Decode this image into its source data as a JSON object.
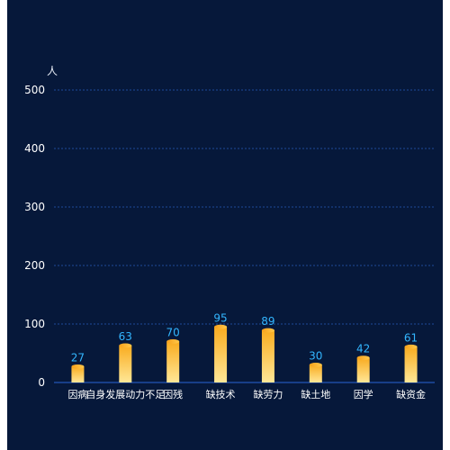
{
  "chart_data": {
    "type": "bar",
    "unit": "人",
    "categories": [
      "因病",
      "自身发展动力不足",
      "因残",
      "缺技术",
      "缺劳力",
      "缺土地",
      "因学",
      "缺资金"
    ],
    "values": [
      27,
      63,
      70,
      95,
      89,
      30,
      42,
      61
    ],
    "ylim": [
      0,
      500
    ],
    "yticks": [
      0,
      100,
      200,
      300,
      400,
      500
    ],
    "grid": true,
    "colors": {
      "background": "#06183a",
      "gridline": "#1f4a9a",
      "axis_text": "#ffffff",
      "value_label": "#33b6ff",
      "bar_top": "#f9ac20",
      "bar_bottom": "#ffe797"
    }
  }
}
